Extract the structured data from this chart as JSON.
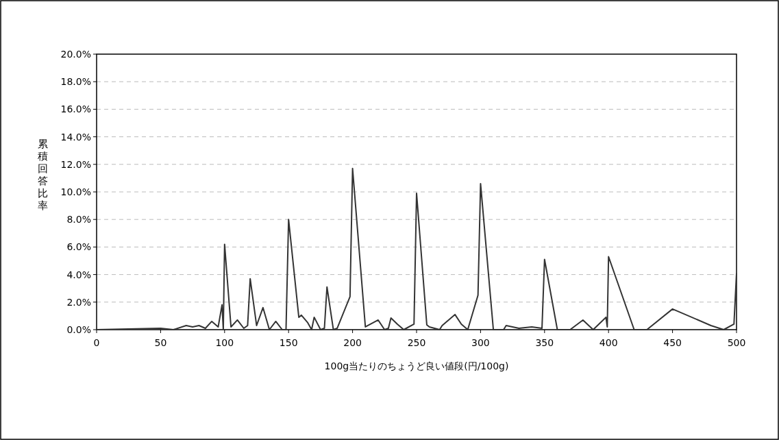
{
  "chart_data": {
    "type": "line",
    "xlabel": "100g当たりのちょうど良い値段(円/100g)",
    "ylabel": "累積回答比率",
    "x": [
      0,
      50,
      60,
      70,
      75,
      80,
      85,
      90,
      95,
      98,
      99,
      100,
      105,
      110,
      115,
      118,
      120,
      125,
      130,
      135,
      140,
      145,
      148,
      150,
      158,
      160,
      165,
      168,
      170,
      175,
      178,
      180,
      185,
      188,
      198,
      200,
      210,
      220,
      225,
      228,
      230,
      235,
      240,
      248,
      250,
      258,
      260,
      268,
      270,
      280,
      285,
      290,
      298,
      300,
      310,
      318,
      320,
      330,
      340,
      348,
      350,
      360,
      370,
      380,
      388,
      398,
      399,
      400,
      420,
      430,
      450,
      480,
      490,
      498,
      500
    ],
    "series": [
      {
        "color": "#333333",
        "values": [
          0,
          0.1,
          0,
          0.3,
          0.2,
          0.3,
          0.1,
          0.6,
          0.2,
          1.8,
          0,
          6.2,
          0.2,
          0.7,
          0.1,
          0.3,
          3.7,
          0.3,
          1.6,
          0,
          0.6,
          0,
          0,
          8.0,
          0.9,
          1.05,
          0.5,
          0,
          0.9,
          0,
          0.1,
          3.1,
          0,
          0.1,
          2.4,
          11.7,
          0.2,
          0.7,
          0,
          0.1,
          0.85,
          0.4,
          0,
          0.4,
          9.9,
          0.35,
          0.2,
          0,
          0.3,
          1.1,
          0.4,
          0,
          2.5,
          10.6,
          0,
          0,
          0.3,
          0.1,
          0.2,
          0.1,
          5.1,
          0,
          0,
          0.7,
          0,
          0.9,
          0.2,
          5.3,
          0,
          0,
          1.5,
          0.3,
          0,
          0.4,
          4.1
        ]
      }
    ],
    "xlim": [
      0,
      500
    ],
    "xticks": [
      0,
      50,
      100,
      150,
      200,
      250,
      300,
      350,
      400,
      450,
      500
    ],
    "ylim": [
      0,
      20
    ],
    "yticks": [
      {
        "value": 0,
        "label": "0.0%"
      },
      {
        "value": 2,
        "label": "2.0%"
      },
      {
        "value": 4,
        "label": "4.0%"
      },
      {
        "value": 6,
        "label": "6.0%"
      },
      {
        "value": 8,
        "label": "8.0%"
      },
      {
        "value": 10,
        "label": "10.0%"
      },
      {
        "value": 12,
        "label": "12.0%"
      },
      {
        "value": 14,
        "label": "14.0%"
      },
      {
        "value": 16,
        "label": "16.0%"
      },
      {
        "value": 18,
        "label": "18.0%"
      },
      {
        "value": 20,
        "label": "20.0%"
      }
    ],
    "grid": "y",
    "marker": "none",
    "line_style": "solid"
  }
}
